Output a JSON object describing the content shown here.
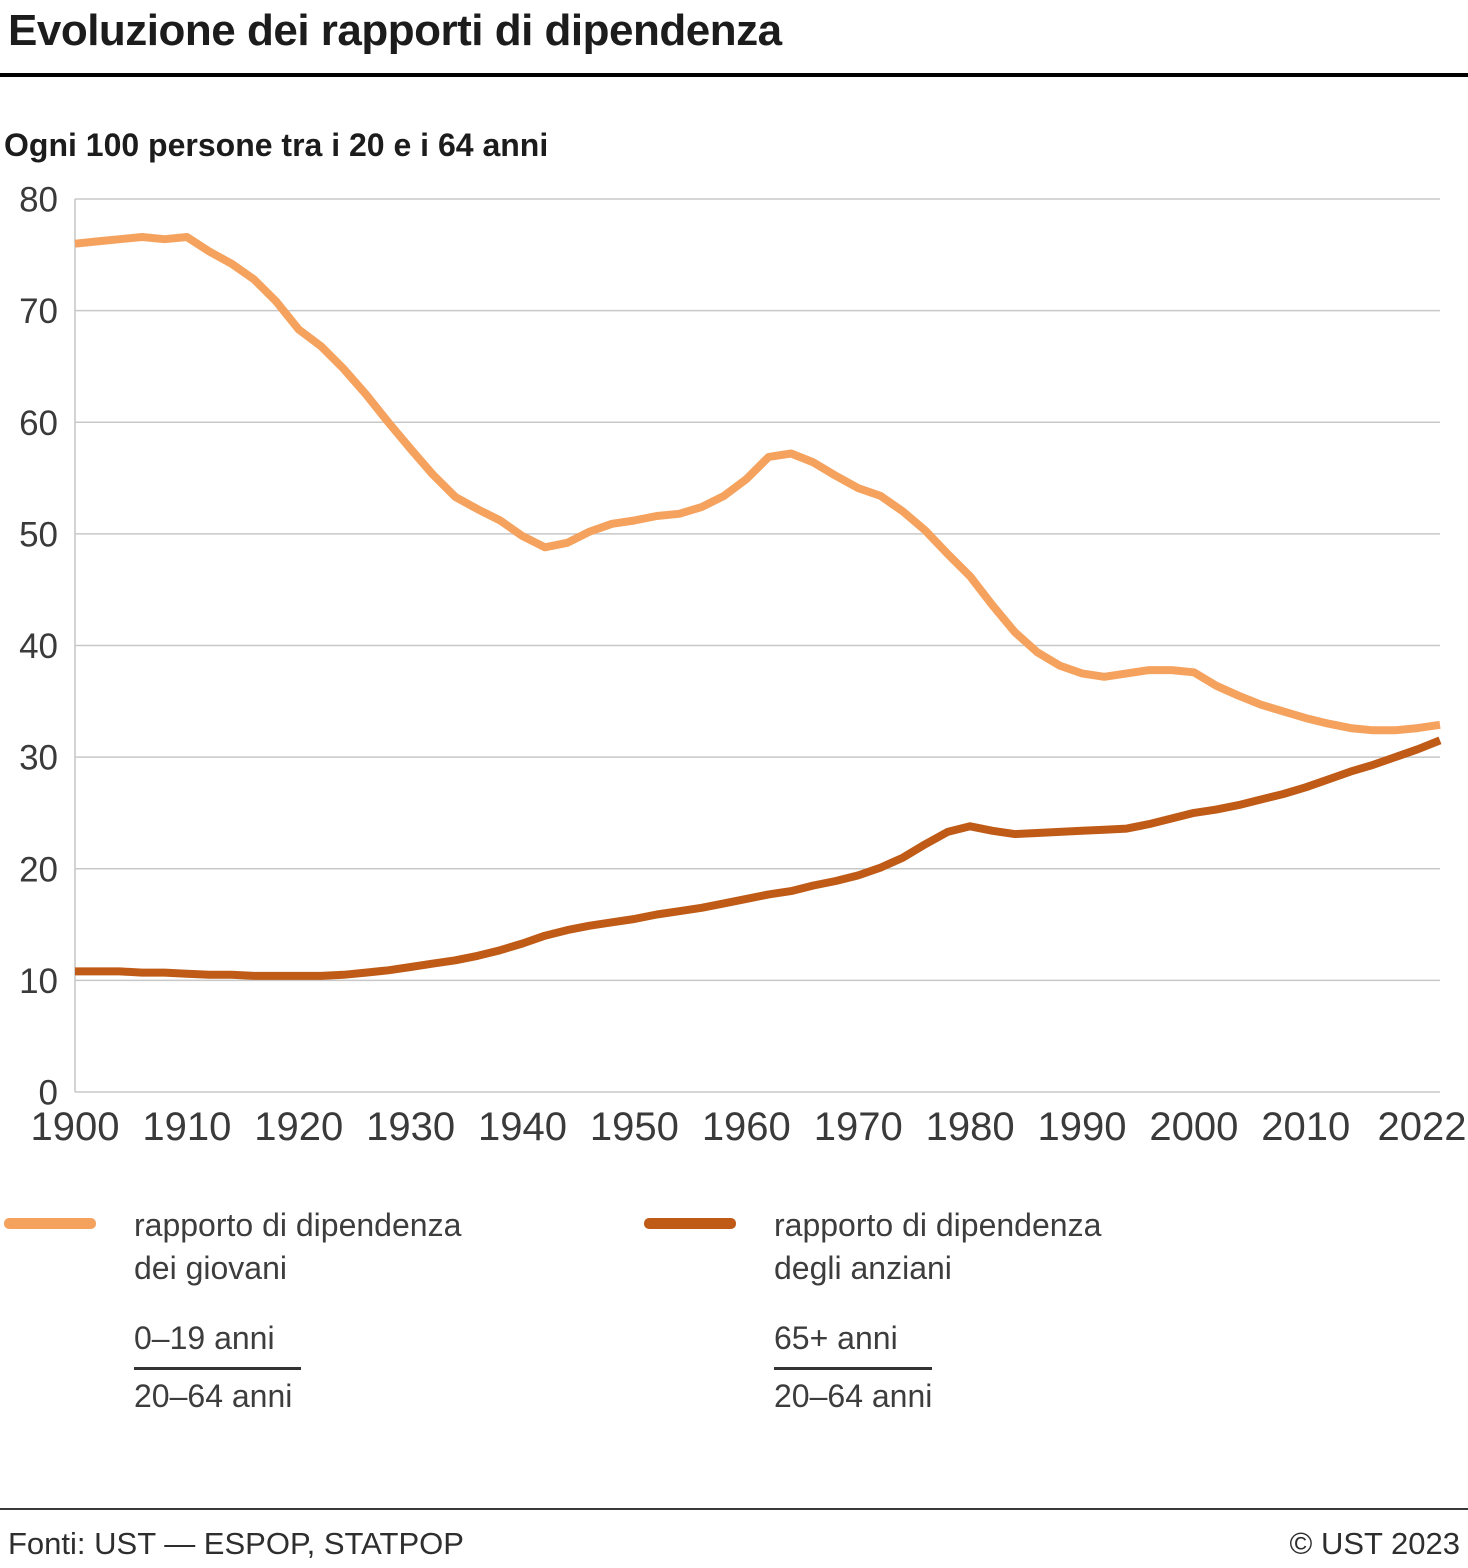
{
  "header": {
    "title": "Evoluzione dei rapporti di dipendenza"
  },
  "subtitle": "Ogni 100 persone tra i 20 e i 64 anni",
  "chart_data": {
    "type": "line",
    "title": "Evoluzione dei rapporti di dipendenza",
    "subtitle": "Ogni 100 persone tra i 20 e i 64 anni",
    "grid": true,
    "legend_position": "bottom",
    "xlim": [
      1900,
      2022
    ],
    "ylim": [
      0,
      80
    ],
    "yticks": [
      0,
      10,
      20,
      30,
      40,
      50,
      60,
      70,
      80
    ],
    "xticks": [
      1900,
      1910,
      1920,
      1930,
      1940,
      1950,
      1960,
      1970,
      1980,
      1990,
      2000,
      2010,
      2022
    ],
    "colors": {
      "grid": "#c8c8c8",
      "axis_text": "#3a3a3a"
    },
    "x": [
      1900,
      1902,
      1904,
      1906,
      1908,
      1910,
      1912,
      1914,
      1916,
      1918,
      1920,
      1922,
      1924,
      1926,
      1928,
      1930,
      1932,
      1934,
      1936,
      1938,
      1940,
      1942,
      1944,
      1946,
      1948,
      1950,
      1952,
      1954,
      1956,
      1958,
      1960,
      1962,
      1964,
      1966,
      1968,
      1970,
      1972,
      1974,
      1976,
      1978,
      1980,
      1982,
      1984,
      1986,
      1988,
      1990,
      1992,
      1994,
      1996,
      1998,
      2000,
      2002,
      2004,
      2006,
      2008,
      2010,
      2012,
      2014,
      2016,
      2018,
      2020,
      2022
    ],
    "series": [
      {
        "name": "rapporto di dipendenza dei giovani",
        "color": "#F5A25E",
        "values": [
          76.0,
          76.2,
          76.4,
          76.6,
          76.4,
          76.6,
          75.3,
          74.2,
          72.8,
          70.8,
          68.3,
          66.8,
          64.8,
          62.5,
          60.0,
          57.6,
          55.3,
          53.3,
          52.2,
          51.2,
          49.8,
          48.8,
          49.2,
          50.2,
          50.9,
          51.2,
          51.6,
          51.8,
          52.4,
          53.4,
          54.9,
          56.9,
          57.2,
          56.4,
          55.2,
          54.1,
          53.4,
          52.0,
          50.3,
          48.2,
          46.2,
          43.6,
          41.2,
          39.4,
          38.2,
          37.5,
          37.2,
          37.5,
          37.8,
          37.8,
          37.6,
          36.4,
          35.5,
          34.7,
          34.1,
          33.5,
          33.0,
          32.6,
          32.4,
          32.4,
          32.6,
          32.9
        ]
      },
      {
        "name": "rapporto di dipendenza degli anziani",
        "color": "#BF5B17",
        "values": [
          10.8,
          10.8,
          10.8,
          10.7,
          10.7,
          10.6,
          10.5,
          10.5,
          10.4,
          10.4,
          10.4,
          10.4,
          10.5,
          10.7,
          10.9,
          11.2,
          11.5,
          11.8,
          12.2,
          12.7,
          13.3,
          14.0,
          14.5,
          14.9,
          15.2,
          15.5,
          15.9,
          16.2,
          16.5,
          16.9,
          17.3,
          17.7,
          18.0,
          18.5,
          18.9,
          19.4,
          20.1,
          21.0,
          22.2,
          23.3,
          23.8,
          23.4,
          23.1,
          23.2,
          23.3,
          23.4,
          23.5,
          23.6,
          24.0,
          24.5,
          25.0,
          25.3,
          25.7,
          26.2,
          26.7,
          27.3,
          28.0,
          28.7,
          29.3,
          30.0,
          30.7,
          31.5
        ]
      }
    ]
  },
  "legend": {
    "items": [
      {
        "line1": "rapporto di dipendenza",
        "line2": "dei giovani",
        "numerator": "0–19 anni",
        "denominator": "20–64 anni"
      },
      {
        "line1": "rapporto di dipendenza",
        "line2": "degli anziani",
        "numerator": "65+ anni",
        "denominator": "20–64 anni"
      }
    ]
  },
  "footer": {
    "sources": "Fonti: UST — ESPOP, STATPOP",
    "copyright": "© UST 2023"
  }
}
